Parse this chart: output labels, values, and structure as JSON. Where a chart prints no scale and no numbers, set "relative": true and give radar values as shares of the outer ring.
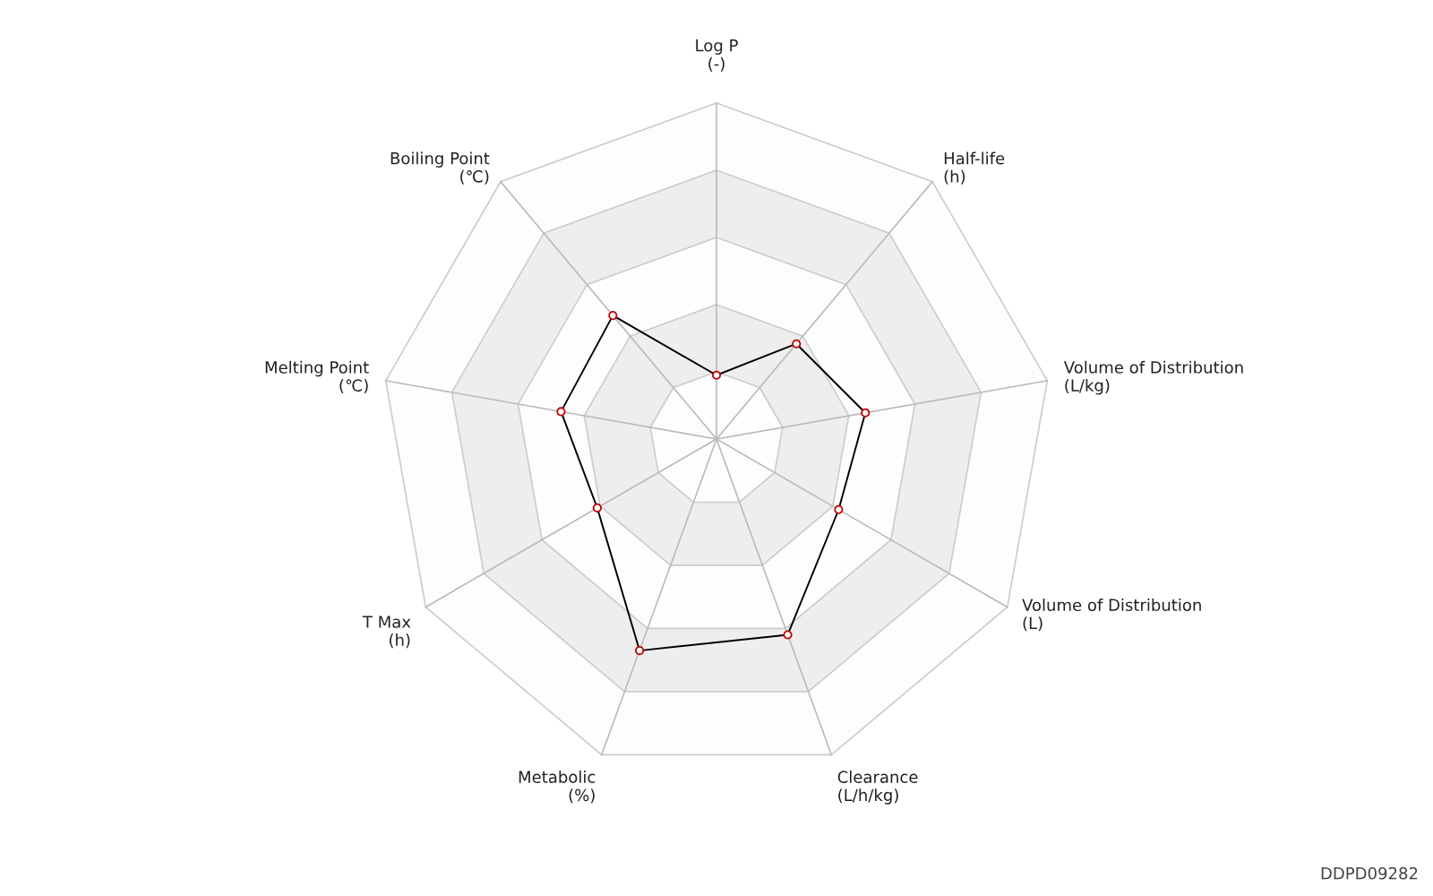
{
  "chart_data": {
    "type": "radar",
    "relative": true,
    "categories": [
      "Log P\n(-)",
      "Half-life\n(h)",
      "Volume of Distribution\n(L/kg)",
      "Volume of Distribution\n(L)",
      "Clearance\n(L/h/kg)",
      "Metabolic\n(%)",
      "T Max\n(h)",
      "Melting Point\n(℃)",
      "Boiling Point\n(℃)"
    ],
    "series": [
      {
        "color": "#000000",
        "values": [
          0.19,
          0.37,
          0.45,
          0.42,
          0.62,
          0.67,
          0.41,
          0.47,
          0.48
        ]
      }
    ],
    "marker": "circle",
    "annotations": [
      "DDPD09282"
    ]
  }
}
